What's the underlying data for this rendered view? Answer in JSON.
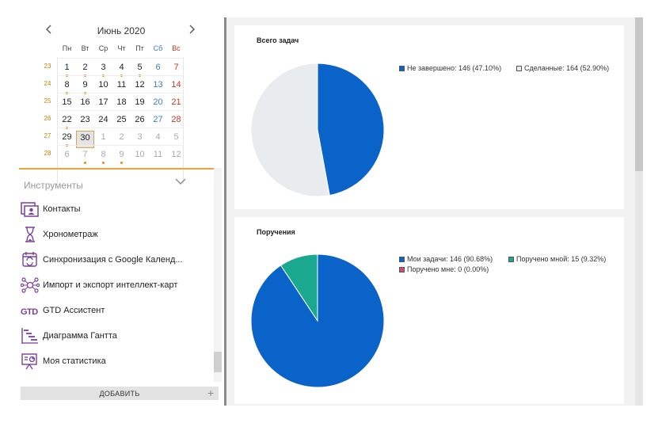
{
  "calendar": {
    "prev_label": "‹",
    "next_label": "›",
    "month_label": "Июнь 2020",
    "weekdays": [
      "Пн",
      "Вт",
      "Ср",
      "Чт",
      "Пт",
      "Сб",
      "Вс"
    ],
    "weeks": [
      {
        "num": "23",
        "days": [
          {
            "d": "1",
            "dot": true
          },
          {
            "d": "2",
            "dot": true
          },
          {
            "d": "3",
            "dot": true
          },
          {
            "d": "4",
            "dot": true
          },
          {
            "d": "5",
            "dot": true
          },
          {
            "d": "6"
          },
          {
            "d": "7"
          }
        ]
      },
      {
        "num": "24",
        "days": [
          {
            "d": "8",
            "dot": true
          },
          {
            "d": "9",
            "dot": true
          },
          {
            "d": "10"
          },
          {
            "d": "11"
          },
          {
            "d": "12"
          },
          {
            "d": "13"
          },
          {
            "d": "14"
          }
        ]
      },
      {
        "num": "25",
        "days": [
          {
            "d": "15"
          },
          {
            "d": "16"
          },
          {
            "d": "17"
          },
          {
            "d": "18"
          },
          {
            "d": "19"
          },
          {
            "d": "20"
          },
          {
            "d": "21"
          }
        ]
      },
      {
        "num": "26",
        "days": [
          {
            "d": "22",
            "dot": true
          },
          {
            "d": "23"
          },
          {
            "d": "24"
          },
          {
            "d": "25"
          },
          {
            "d": "26"
          },
          {
            "d": "27"
          },
          {
            "d": "28"
          }
        ]
      },
      {
        "num": "27",
        "days": [
          {
            "d": "29",
            "dot": true
          },
          {
            "d": "30",
            "today": true
          },
          {
            "d": "1",
            "other": true
          },
          {
            "d": "2",
            "other": true
          },
          {
            "d": "3",
            "other": true
          },
          {
            "d": "4",
            "other": true
          },
          {
            "d": "5",
            "other": true
          }
        ]
      },
      {
        "num": "28",
        "days": [
          {
            "d": "6",
            "other": true
          },
          {
            "d": "7",
            "other": true,
            "dot": true
          },
          {
            "d": "8",
            "other": true,
            "dot": true
          },
          {
            "d": "9",
            "other": true,
            "dot": true
          },
          {
            "d": "10",
            "other": true
          },
          {
            "d": "11",
            "other": true
          },
          {
            "d": "12",
            "other": true
          }
        ]
      }
    ]
  },
  "tools": {
    "header": "Инструменты",
    "items": [
      {
        "label": "Контакты",
        "icon": "contacts-icon"
      },
      {
        "label": "Хронометраж",
        "icon": "hourglass-icon"
      },
      {
        "label": "Синхронизация с Google Календ...",
        "icon": "calendar-sync-icon"
      },
      {
        "label": "Импорт и экспорт интеллект-карт",
        "icon": "mindmap-icon"
      },
      {
        "label": "GTD Ассистент",
        "icon": "gtd-icon"
      },
      {
        "label": "Диаграмма Гантта",
        "icon": "gantt-icon"
      },
      {
        "label": "Моя статистика",
        "icon": "statistics-icon"
      }
    ],
    "add_label": "ДОБАВИТЬ",
    "add_plus": "+"
  },
  "colors": {
    "accent_orange": "#f0a33a",
    "icon_purple": "#7b3fa0",
    "blue": "#0a63c9",
    "teal": "#1aa88e",
    "light": "#e9ecef",
    "pink": "#d04a7a"
  },
  "chart_data": [
    {
      "type": "pie",
      "title": "Всего задач",
      "series": [
        {
          "name": "Не завершено",
          "legend": "Не завершено: 146 (47.10%)",
          "value": 146,
          "percent": 47.1,
          "color": "#0a63c9"
        },
        {
          "name": "Сделанные",
          "legend": "Сделанные: 164 (52.90%)",
          "value": 164,
          "percent": 52.9,
          "color": "#e9ecef"
        }
      ]
    },
    {
      "type": "pie",
      "title": "Поручения",
      "series": [
        {
          "name": "Мои задачи",
          "legend": "Мои задачи: 146 (90.68%)",
          "value": 146,
          "percent": 90.68,
          "color": "#0a63c9"
        },
        {
          "name": "Поручено мной",
          "legend": "Поручено мной: 15 (9.32%)",
          "value": 15,
          "percent": 9.32,
          "color": "#1aa88e"
        },
        {
          "name": "Поручено мне",
          "legend": "Поручено мне: 0 (0.00%)",
          "value": 0,
          "percent": 0.0,
          "color": "#d04a7a"
        }
      ]
    }
  ]
}
